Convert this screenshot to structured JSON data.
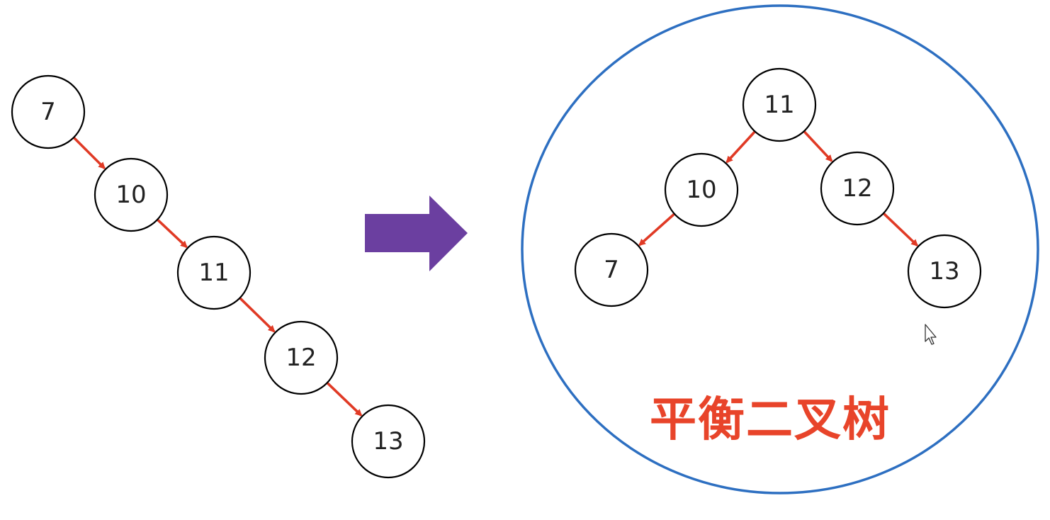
{
  "colors": {
    "edge": "#e03a25",
    "node_stroke": "#000000",
    "node_fill": "#ffffff",
    "transform_arrow": "#6b3fa0",
    "highlight_circle": "#2d6fc1",
    "caption": "#e8442a",
    "background": "#ffffff"
  },
  "unbalanced_tree": {
    "nodes": [
      {
        "id": "u7",
        "label": "7"
      },
      {
        "id": "u10",
        "label": "10"
      },
      {
        "id": "u11",
        "label": "11"
      },
      {
        "id": "u12",
        "label": "12"
      },
      {
        "id": "u13",
        "label": "13"
      }
    ],
    "edges": [
      {
        "from": "u7",
        "to": "u10"
      },
      {
        "from": "u10",
        "to": "u11"
      },
      {
        "from": "u11",
        "to": "u12"
      },
      {
        "from": "u12",
        "to": "u13"
      }
    ]
  },
  "transform_arrow": {
    "icon": "right-arrow-icon"
  },
  "balanced_tree": {
    "nodes": [
      {
        "id": "b11",
        "label": "11"
      },
      {
        "id": "b10",
        "label": "10"
      },
      {
        "id": "b12",
        "label": "12"
      },
      {
        "id": "b7",
        "label": "7"
      },
      {
        "id": "b13",
        "label": "13"
      }
    ],
    "edges": [
      {
        "from": "b11",
        "to": "b10"
      },
      {
        "from": "b11",
        "to": "b12"
      },
      {
        "from": "b10",
        "to": "b7"
      },
      {
        "from": "b12",
        "to": "b13"
      }
    ],
    "caption": "平衡二叉树"
  },
  "cursor": {
    "icon": "mouse-pointer-icon"
  }
}
